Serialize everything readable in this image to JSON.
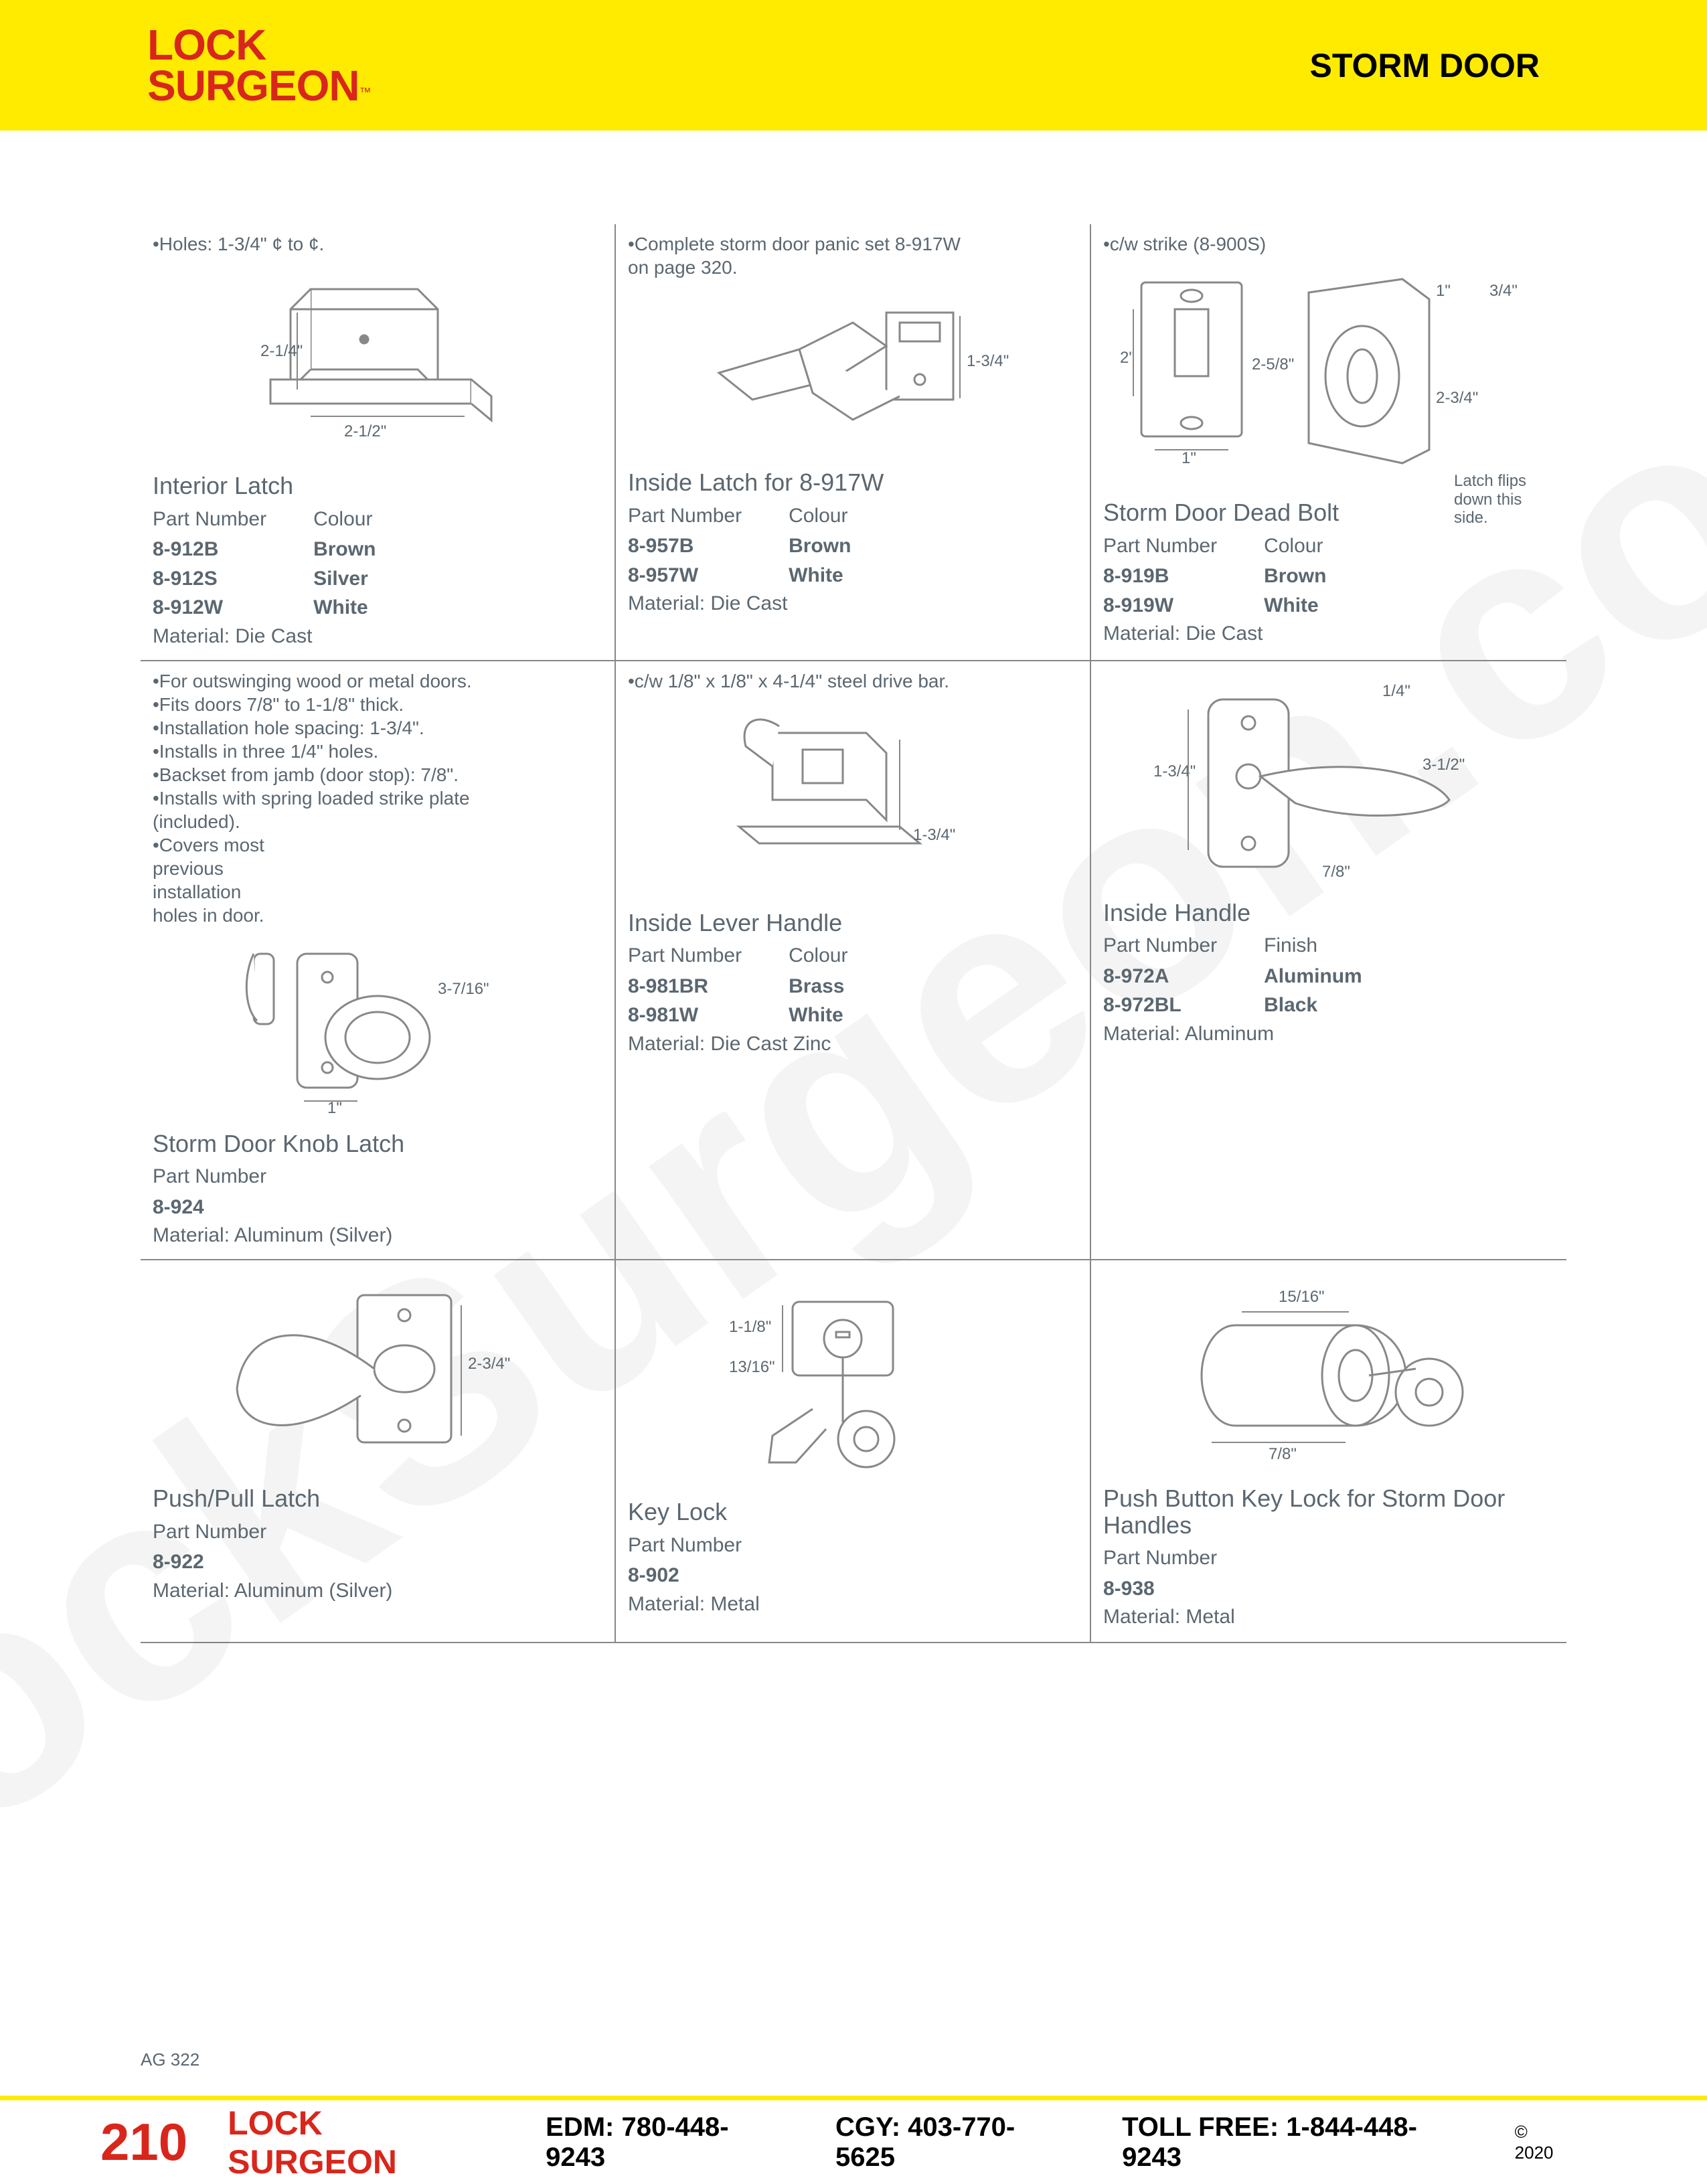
{
  "colors": {
    "header_bg": "#ffeb00",
    "brand_red": "#d9261c",
    "text_gray": "#5b6770",
    "rule": "#888888",
    "background": "#ffffff",
    "watermark": "rgba(0,0,0,0.045)"
  },
  "header": {
    "logo_line1": "LOCK",
    "logo_line2": "SURGEON",
    "logo_tm": "™",
    "right": "STORM DOOR"
  },
  "watermark": "LockSurgeon.com",
  "ag_label": "AG 322",
  "footer": {
    "page": "210",
    "brand": "LOCK SURGEON",
    "edm": "EDM: 780-448-9243",
    "cgy": "CGY: 403-770-5625",
    "tollfree": "TOLL FREE: 1-844-448-9243",
    "copyright": "© 2020"
  },
  "products": [
    {
      "notes": [
        "•Holes: 1-3/4\" ¢ to ¢."
      ],
      "dims": [
        "2-1/4\"",
        "2-1/2\""
      ],
      "title": "Interior Latch",
      "col1_label": "Part Number",
      "col2_label": "Colour",
      "col1": [
        "8-912B",
        "8-912S",
        "8-912W"
      ],
      "col2": [
        "Brown",
        "Silver",
        "White"
      ],
      "material": "Die Cast"
    },
    {
      "notes": [
        "•Complete storm door panic set 8-917W",
        " on page 320."
      ],
      "dims": [
        "1-3/4\""
      ],
      "title": "Inside Latch for 8-917W",
      "col1_label": "Part Number",
      "col2_label": "Colour",
      "col1": [
        "8-957B",
        "8-957W"
      ],
      "col2": [
        "Brown",
        "White"
      ],
      "material": "Die Cast"
    },
    {
      "notes": [
        "•c/w strike (8-900S)"
      ],
      "dims": [
        "2\"",
        "1\"",
        "2-5/8\"",
        "2-3/4\"",
        "1\"",
        "3/4\""
      ],
      "title": "Storm Door Dead Bolt",
      "side_note": "Latch flips down this side.",
      "col1_label": "Part Number",
      "col2_label": "Colour",
      "col1": [
        "8-919B",
        "8-919W"
      ],
      "col2": [
        "Brown",
        "White"
      ],
      "material": "Die Cast"
    },
    {
      "notes": [
        "•For outswinging wood or metal doors.",
        "•Fits doors 7/8\" to 1-1/8\" thick.",
        "•Installation hole spacing: 1-3/4\".",
        "•Installs in three 1/4\" holes.",
        "•Backset from jamb (door stop): 7/8\".",
        "•Installs with spring loaded strike plate",
        " (included).",
        "•Covers most",
        " previous",
        " installation",
        " holes in door."
      ],
      "dims": [
        "3-7/16\"",
        "1\""
      ],
      "title": "Storm Door Knob Latch",
      "col1_label": "Part Number",
      "col2_label": "",
      "col1": [
        "8-924"
      ],
      "col2": [],
      "material": "Aluminum (Silver)"
    },
    {
      "notes": [
        "•c/w 1/8\" x 1/8\" x 4-1/4\" steel drive bar."
      ],
      "dims": [
        "1-3/4\""
      ],
      "title": "Inside Lever Handle",
      "col1_label": "Part Number",
      "col2_label": "Colour",
      "col1": [
        "8-981BR",
        "8-981W"
      ],
      "col2": [
        "Brass",
        "White"
      ],
      "material": "Die Cast Zinc"
    },
    {
      "notes": [],
      "dims": [
        "1-3/4\"",
        "1/4\"",
        "3-1/2\"",
        "7/8\""
      ],
      "title": "Inside Handle",
      "col1_label": "Part Number",
      "col2_label": "Finish",
      "col1": [
        "8-972A",
        "8-972BL"
      ],
      "col2": [
        "Aluminum",
        "Black"
      ],
      "material": "Aluminum"
    },
    {
      "notes": [],
      "dims": [
        "2-3/4\""
      ],
      "title": "Push/Pull Latch",
      "col1_label": "Part Number",
      "col2_label": "",
      "col1": [
        "8-922"
      ],
      "col2": [],
      "material": "Aluminum (Silver)"
    },
    {
      "notes": [],
      "dims": [
        "1-1/8\"",
        "13/16\""
      ],
      "title": "Key Lock",
      "col1_label": "Part Number",
      "col2_label": "",
      "col1": [
        "8-902"
      ],
      "col2": [],
      "material": "Metal"
    },
    {
      "notes": [],
      "dims": [
        "15/16\"",
        "7/8\""
      ],
      "title": "Push Button Key Lock for Storm Door Handles",
      "col1_label": "Part Number",
      "col2_label": "",
      "col1": [
        "8-938"
      ],
      "col2": [],
      "material": "Metal"
    }
  ]
}
